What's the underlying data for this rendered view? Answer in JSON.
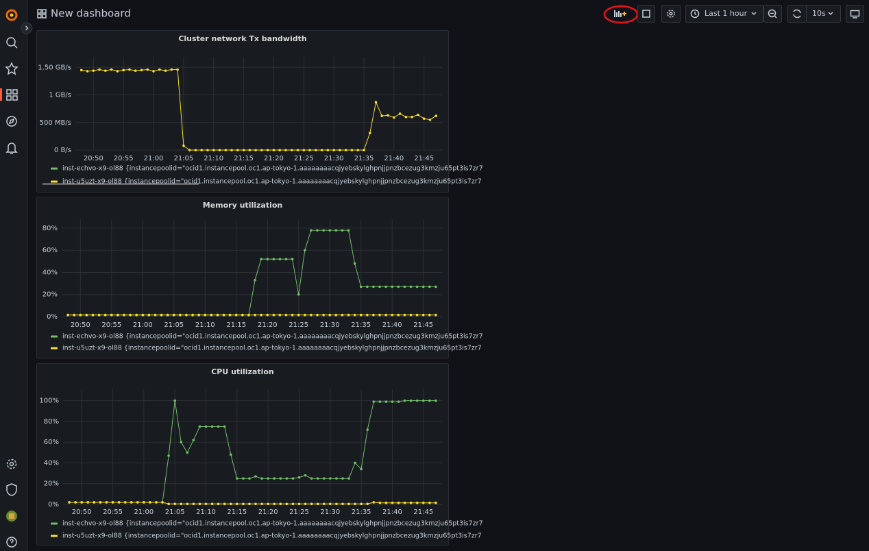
{
  "header": {
    "title": "New dashboard",
    "time_range": "Last 1 hour",
    "refresh": "10s"
  },
  "chart_data": [
    {
      "type": "line",
      "title": "Cluster network Tx bandwidth",
      "x": [
        "20:48",
        "20:49",
        "20:50",
        "20:51",
        "20:52",
        "20:53",
        "20:54",
        "20:55",
        "20:56",
        "20:57",
        "20:58",
        "20:59",
        "21:00",
        "21:01",
        "21:02",
        "21:03",
        "21:04",
        "21:05",
        "21:06",
        "21:07",
        "21:08",
        "21:09",
        "21:10",
        "21:11",
        "21:12",
        "21:13",
        "21:14",
        "21:15",
        "21:16",
        "21:17",
        "21:18",
        "21:19",
        "21:20",
        "21:21",
        "21:22",
        "21:23",
        "21:24",
        "21:25",
        "21:26",
        "21:27",
        "21:28",
        "21:29",
        "21:30",
        "21:31",
        "21:32",
        "21:33",
        "21:34",
        "21:35",
        "21:36",
        "21:37",
        "21:38",
        "21:39",
        "21:40",
        "21:41",
        "21:42",
        "21:43",
        "21:44",
        "21:45",
        "21:46",
        "21:47"
      ],
      "xlim": [
        "20:47",
        "21:48"
      ],
      "xticks": [
        "20:50",
        "20:55",
        "21:00",
        "21:05",
        "21:10",
        "21:15",
        "21:20",
        "21:25",
        "21:30",
        "21:35",
        "21:40",
        "21:45"
      ],
      "ylim": [
        0,
        1690
      ],
      "yticks": [
        {
          "value": 0,
          "label": "0 B/s"
        },
        {
          "value": 500,
          "label": "500 MB/s"
        },
        {
          "value": 1000,
          "label": "1 GB/s"
        },
        {
          "value": 1500,
          "label": "1.50 GB/s"
        }
      ],
      "grid": true,
      "series": [
        {
          "name": "inst-echvo-x9-ol88 {instancepoolid=\"ocid1.instancepool.oc1.ap-tokyo-1.aaaaaaaacqjyebskylghpnjjpnzbcezug3kmzju65pt3is7zr7",
          "color": "#73bf69",
          "values": [
            null,
            null,
            null,
            null,
            null,
            null,
            null,
            null,
            null,
            null,
            null,
            null,
            null,
            null,
            null,
            null,
            null,
            null,
            null,
            null,
            null,
            null,
            null,
            null,
            null,
            null,
            null,
            null,
            null,
            null,
            null,
            null,
            null,
            null,
            null,
            null,
            null,
            null,
            null,
            null,
            null,
            null,
            null,
            null,
            null,
            null,
            null,
            null,
            null,
            null,
            null,
            null,
            null,
            null,
            null,
            null,
            null,
            null,
            null,
            null
          ]
        },
        {
          "name": "inst-u5uzt-x9-ol88 {instancepoolid=\"ocid1.instancepool.oc1.ap-tokyo-1.aaaaaaaacqjyebskylghpnjjpnzbcezug3kmzju65pt3is7zr7",
          "color": "#fade2a",
          "values": [
            1450,
            1430,
            1440,
            1460,
            1440,
            1460,
            1430,
            1450,
            1460,
            1440,
            1450,
            1460,
            1430,
            1460,
            1440,
            1460,
            1460,
            80,
            0,
            0,
            0,
            0,
            0,
            0,
            0,
            0,
            0,
            0,
            0,
            0,
            0,
            0,
            0,
            0,
            0,
            0,
            0,
            0,
            0,
            0,
            0,
            0,
            0,
            0,
            0,
            0,
            0,
            0,
            310,
            870,
            620,
            630,
            590,
            660,
            600,
            600,
            640,
            570,
            550,
            620
          ]
        }
      ]
    },
    {
      "type": "line",
      "title": "Memory utilization",
      "x": [
        "20:48",
        "20:49",
        "20:50",
        "20:51",
        "20:52",
        "20:53",
        "20:54",
        "20:55",
        "20:56",
        "20:57",
        "20:58",
        "20:59",
        "21:00",
        "21:01",
        "21:02",
        "21:03",
        "21:04",
        "21:05",
        "21:06",
        "21:07",
        "21:08",
        "21:09",
        "21:10",
        "21:11",
        "21:12",
        "21:13",
        "21:14",
        "21:15",
        "21:16",
        "21:17",
        "21:18",
        "21:19",
        "21:20",
        "21:21",
        "21:22",
        "21:23",
        "21:24",
        "21:25",
        "21:26",
        "21:27",
        "21:28",
        "21:29",
        "21:30",
        "21:31",
        "21:32",
        "21:33",
        "21:34",
        "21:35",
        "21:36",
        "21:37",
        "21:38",
        "21:39",
        "21:40",
        "21:41",
        "21:42",
        "21:43",
        "21:44",
        "21:45",
        "21:46",
        "21:47"
      ],
      "xlim": [
        "20:47",
        "21:48"
      ],
      "xticks": [
        "20:50",
        "20:55",
        "21:00",
        "21:05",
        "21:10",
        "21:15",
        "21:20",
        "21:25",
        "21:30",
        "21:35",
        "21:40",
        "21:45"
      ],
      "ylim": [
        0,
        88
      ],
      "yticks": [
        {
          "value": 0,
          "label": "0%"
        },
        {
          "value": 20,
          "label": "20%"
        },
        {
          "value": 40,
          "label": "40%"
        },
        {
          "value": 60,
          "label": "60%"
        },
        {
          "value": 80,
          "label": "80%"
        }
      ],
      "grid": true,
      "series": [
        {
          "name": "inst-echvo-x9-ol88 {instancepoolid=\"ocid1.instancepool.oc1.ap-tokyo-1.aaaaaaaacqjyebskylghpnjjpnzbcezug3kmzju65pt3is7zr7",
          "color": "#73bf69",
          "values": [
            1.5,
            1.5,
            1.5,
            1.5,
            1.5,
            1.5,
            1.5,
            1.5,
            1.5,
            1.5,
            1.5,
            1.5,
            1.5,
            1.5,
            1.5,
            1.5,
            1.5,
            1.5,
            1.5,
            1.5,
            1.5,
            1.5,
            1.5,
            1.5,
            1.5,
            1.5,
            1.5,
            1.5,
            1.5,
            1.5,
            33,
            52,
            52,
            52,
            52,
            52,
            52,
            20,
            60,
            78,
            78,
            78,
            78,
            78,
            78,
            78,
            48,
            27,
            27,
            27,
            27,
            27,
            27,
            27,
            27,
            27,
            27,
            27,
            27,
            27
          ]
        },
        {
          "name": "inst-u5uzt-x9-ol88 {instancepoolid=\"ocid1.instancepool.oc1.ap-tokyo-1.aaaaaaaacqjyebskylghpnjjpnzbcezug3kmzju65pt3is7zr7",
          "color": "#fade2a",
          "values": [
            1.5,
            1.5,
            1.5,
            1.5,
            1.5,
            1.5,
            1.5,
            1.5,
            1.5,
            1.5,
            1.5,
            1.5,
            1.5,
            1.5,
            1.5,
            1.5,
            1.5,
            1.5,
            1.5,
            1.5,
            1.5,
            1.5,
            1.5,
            1.5,
            1.5,
            1.5,
            1.5,
            1.5,
            1.5,
            1.5,
            1.5,
            1.5,
            1.5,
            1.5,
            1.5,
            1.5,
            1.5,
            1.5,
            1.5,
            1.5,
            1.5,
            1.5,
            1.5,
            1.5,
            1.5,
            1.5,
            1.5,
            1.5,
            1.5,
            1.5,
            1.5,
            1.5,
            1.5,
            1.5,
            1.5,
            1.5,
            1.5,
            1.5,
            1.5,
            1.5
          ]
        }
      ]
    },
    {
      "type": "line",
      "title": "CPU utilization",
      "x": [
        "20:48",
        "20:49",
        "20:50",
        "20:51",
        "20:52",
        "20:53",
        "20:54",
        "20:55",
        "20:56",
        "20:57",
        "20:58",
        "20:59",
        "21:00",
        "21:01",
        "21:02",
        "21:03",
        "21:04",
        "21:05",
        "21:06",
        "21:07",
        "21:08",
        "21:09",
        "21:10",
        "21:11",
        "21:12",
        "21:13",
        "21:14",
        "21:15",
        "21:16",
        "21:17",
        "21:18",
        "21:19",
        "21:20",
        "21:21",
        "21:22",
        "21:23",
        "21:24",
        "21:25",
        "21:26",
        "21:27",
        "21:28",
        "21:29",
        "21:30",
        "21:31",
        "21:32",
        "21:33",
        "21:34",
        "21:35",
        "21:36",
        "21:37",
        "21:38",
        "21:39",
        "21:40",
        "21:41",
        "21:42",
        "21:43",
        "21:44",
        "21:45",
        "21:46",
        "21:47"
      ],
      "xlim": [
        "20:47",
        "21:48"
      ],
      "xticks": [
        "20:50",
        "20:55",
        "21:00",
        "21:05",
        "21:10",
        "21:15",
        "21:20",
        "21:25",
        "21:30",
        "21:35",
        "21:40",
        "21:45"
      ],
      "ylim": [
        0,
        111
      ],
      "yticks": [
        {
          "value": 0,
          "label": "0%"
        },
        {
          "value": 20,
          "label": "20%"
        },
        {
          "value": 40,
          "label": "40%"
        },
        {
          "value": 60,
          "label": "60%"
        },
        {
          "value": 80,
          "label": "80%"
        },
        {
          "value": 100,
          "label": "100%"
        }
      ],
      "grid": true,
      "series": [
        {
          "name": "inst-echvo-x9-ol88 {instancepoolid=\"ocid1.instancepool.oc1.ap-tokyo-1.aaaaaaaacqjyebskylghpnjjpnzbcezug3kmzju65pt3is7zr7",
          "color": "#73bf69",
          "values": [
            2,
            2,
            2,
            2,
            2,
            2,
            2,
            2,
            2,
            2,
            2,
            2,
            2,
            2,
            2,
            2,
            47,
            100,
            60,
            50,
            62,
            75,
            75,
            75,
            75,
            75,
            48,
            25,
            25,
            25,
            27,
            25,
            25,
            25,
            25,
            25,
            25,
            26,
            28,
            25,
            25,
            25,
            25,
            25,
            25,
            25,
            40,
            34,
            72,
            99,
            99,
            99,
            99,
            99,
            100,
            100,
            100,
            100,
            100,
            100
          ]
        },
        {
          "name": "inst-u5uzt-x9-ol88 {instancepoolid=\"ocid1.instancepool.oc1.ap-tokyo-1.aaaaaaaacqjyebskylghpnjjpnzbcezug3kmzju65pt3is7zr7",
          "color": "#fade2a",
          "values": [
            2,
            2,
            2,
            2,
            2,
            2,
            2,
            2,
            2,
            2,
            2,
            2,
            2,
            2,
            2,
            2,
            0.5,
            0.5,
            0.5,
            0.5,
            0.5,
            0.5,
            0.5,
            0.5,
            0.5,
            0.5,
            0.5,
            0.5,
            0.5,
            0.5,
            0.5,
            0.5,
            0.5,
            0.5,
            0.5,
            0.5,
            0.5,
            0.5,
            0.5,
            0.5,
            0.5,
            0.5,
            0.5,
            0.5,
            0.5,
            0.5,
            0.5,
            0.5,
            0.5,
            2,
            1.5,
            1.5,
            1.5,
            1.5,
            1.5,
            1.5,
            1.5,
            1.5,
            1.5,
            1.5
          ]
        }
      ]
    }
  ]
}
